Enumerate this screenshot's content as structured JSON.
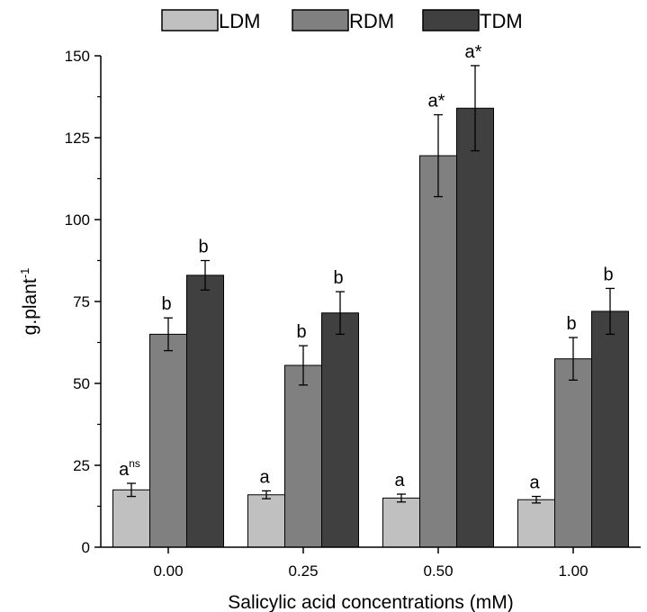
{
  "chart_data": {
    "type": "bar",
    "xlabel": "Salicylic acid concentrations (mM)",
    "ylabel": "g.plant",
    "ylabel_sup": "-1",
    "ylim": [
      0,
      150
    ],
    "yticks": [
      "0",
      "25",
      "50",
      "75",
      "100",
      "125",
      "150"
    ],
    "categories": [
      "0.00",
      "0.25",
      "0.50",
      "1.00"
    ],
    "legend_position": "top",
    "grid": false,
    "series": [
      {
        "name": "LDM",
        "color": "#c0c0c0",
        "values": [
          17.5,
          16,
          15,
          14.5
        ],
        "errors": [
          2,
          1.2,
          1.2,
          1
        ],
        "labels": [
          "a",
          "a",
          "a",
          "a"
        ],
        "label_sups": [
          "ns",
          "",
          "",
          ""
        ]
      },
      {
        "name": "RDM",
        "color": "#808080",
        "values": [
          65,
          55.5,
          119.5,
          57.5
        ],
        "errors": [
          5,
          6,
          12.5,
          6.5
        ],
        "labels": [
          "b",
          "b",
          "a*",
          "b"
        ],
        "label_sups": [
          "",
          "",
          "",
          ""
        ]
      },
      {
        "name": "TDM",
        "color": "#404040",
        "values": [
          83,
          71.5,
          134,
          72
        ],
        "errors": [
          4.5,
          6.5,
          13,
          7
        ],
        "labels": [
          "b",
          "b",
          "a*",
          "b"
        ],
        "label_sups": [
          "",
          "",
          "",
          ""
        ]
      }
    ]
  }
}
